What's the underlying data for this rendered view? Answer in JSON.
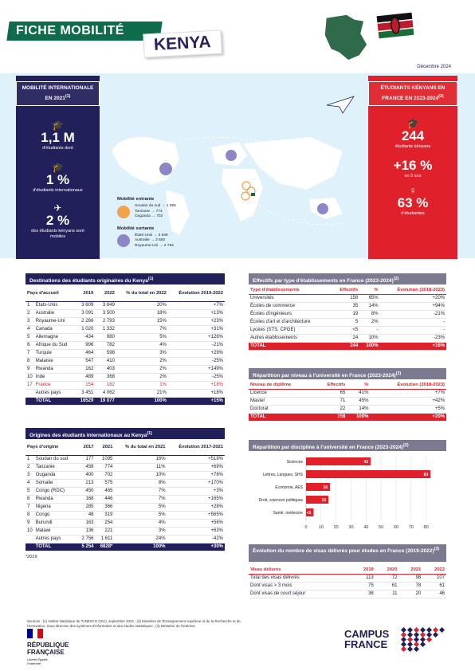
{
  "header": {
    "title": "FICHE MOBILITÉ",
    "country": "KENYA",
    "date": "Décembre 2024"
  },
  "left": {
    "title": "MOBILITÉ INTERNATIONALE EN 2021",
    "sup": "(1)",
    "stat1": "1,1 M",
    "stat1_label": "d'étudiants dont",
    "stat2": "1 %",
    "stat2_label": "d'étudiants internationaux",
    "stat3": "2 %",
    "stat3_label": "des étudiants kényans sont mobiles"
  },
  "right": {
    "title": "ÉTUDIANTS KÉNYANS EN FRANCE EN 2023-2024",
    "sup": "(2)",
    "stat1": "244",
    "stat1_label": "étudiants kényans",
    "stat2": "+16 %",
    "stat2_label": "en 5 ans",
    "stat3": "63 %",
    "stat3_label": "d'étudiantes"
  },
  "map": {
    "in_title": "Mobilité entrante",
    "in_lines": [
      "Soudan du sud → 1 095",
      "Tanzanie → 774",
      "Ouganda → 702"
    ],
    "out_title": "Mobilité sortante",
    "out_lines": [
      "États-Unis → 3 849",
      "Australie → 3 500",
      "Royaume-Uni → 2 793"
    ]
  },
  "dest": {
    "title": "Destinations des étudiants originaires du Kenya",
    "sup": "(1)",
    "headers": [
      "Pays d'accueil",
      "2019",
      "2022",
      "% du total en 2022",
      "Évolution 2019-2022"
    ],
    "rows": [
      [
        "1",
        "États-Unis",
        "3 609",
        "3 849",
        "20%",
        "+7%"
      ],
      [
        "2",
        "Australie",
        "3 091",
        "3 500",
        "18%",
        "+13%"
      ],
      [
        "3",
        "Royaume-Uni",
        "2 266",
        "2 793",
        "15%",
        "+23%"
      ],
      [
        "4",
        "Canada",
        "1 020",
        "1 332",
        "7%",
        "+31%"
      ],
      [
        "5",
        "Allemagne",
        "434",
        "980",
        "5%",
        "+126%"
      ],
      [
        "6",
        "Afrique du Sud",
        "996",
        "782",
        "4%",
        "-21%"
      ],
      [
        "7",
        "Turquie",
        "464",
        "598",
        "3%",
        "+29%"
      ],
      [
        "8",
        "Malaisie",
        "547",
        "410",
        "2%",
        "-25%"
      ],
      [
        "9",
        "Rwanda",
        "162",
        "403",
        "2%",
        "+149%"
      ],
      [
        "10",
        "Inde",
        "489",
        "368",
        "2%",
        "-25%"
      ],
      [
        "17",
        "France",
        "154",
        "182",
        "1%",
        "+18%"
      ],
      [
        "",
        "Autres pays",
        "3 451",
        "4 062",
        "21%",
        "+18%"
      ]
    ],
    "total": [
      "",
      "TOTAL",
      "16529",
      "19 077",
      "100%",
      "+15%"
    ]
  },
  "orig": {
    "title": "Origines des étudiants internationaux au Kenya",
    "sup": "(1)",
    "headers": [
      "Pays d'origine",
      "2017",
      "2021",
      "% du total en 2021",
      "Évolution 2017-2021"
    ],
    "rows": [
      [
        "1",
        "Soudan du sud",
        "177",
        "1095",
        "16%",
        "+519%"
      ],
      [
        "2",
        "Tanzanie",
        "458",
        "774",
        "11%",
        "+69%"
      ],
      [
        "3",
        "Ouganda",
        "400",
        "702",
        "10%",
        "+76%"
      ],
      [
        "4",
        "Somalie",
        "213",
        "575",
        "8%",
        "+170%"
      ],
      [
        "5",
        "Congo (RDC)",
        "450",
        "465",
        "7%",
        "+3%"
      ],
      [
        "6",
        "Rwanda",
        "168",
        "446",
        "7%",
        "+165%"
      ],
      [
        "7",
        "Nigeria",
        "285",
        "366",
        "5%",
        "+28%"
      ],
      [
        "8",
        "Congo",
        "48",
        "319",
        "5%",
        "+565%"
      ],
      [
        "9",
        "Burundi",
        "163",
        "254",
        "4%",
        "+56%"
      ],
      [
        "10",
        "Malawi",
        "136",
        "221",
        "3%",
        "+63%"
      ],
      [
        "",
        "Autres pays",
        "2 756",
        "1 611",
        "24%",
        "-42%"
      ]
    ],
    "total": [
      "",
      "TOTAL",
      "5 254",
      "6828*",
      "100%",
      "+30%"
    ],
    "note": "*2019"
  },
  "etab": {
    "title": "Effectifs par type d'établissements en France (2023-2024)",
    "sup": "(2)",
    "headers": [
      "Type d'établissements",
      "Effectifs",
      "%",
      "Évolution (2018-2023)"
    ],
    "rows": [
      [
        "Universités",
        "158",
        "65%",
        "+20%"
      ],
      [
        "Écoles de commerce",
        "35",
        "14%",
        "+94%"
      ],
      [
        "Écoles d'ingénieurs",
        "19",
        "8%",
        "-21%"
      ],
      [
        "Écoles d'art et d'architecture",
        "5",
        "2%",
        "-"
      ],
      [
        "Lycées (STS, CPGE)",
        "<5",
        "-",
        "-"
      ],
      [
        "Autres établissements",
        "24",
        "10%",
        "-23%"
      ]
    ],
    "total": [
      "TOTAL",
      "244",
      "100%",
      "+16%"
    ]
  },
  "niveau": {
    "title": "Répartition par niveau à l'université en France (2023-2024)",
    "sup": "(2)",
    "headers": [
      "Niveau de diplôme",
      "Effectifs",
      "%",
      "Évolution (2018-2023)"
    ],
    "rows": [
      [
        "Licence",
        "65",
        "41%",
        "+7%"
      ],
      [
        "Master",
        "71",
        "45%",
        "+42%"
      ],
      [
        "Doctorat",
        "22",
        "14%",
        "+5%"
      ]
    ],
    "total": [
      "TOTAL",
      "158",
      "100%",
      "+20%"
    ]
  },
  "discipline": {
    "title": "Répartition par discipline à l'université en France (2023-2024)",
    "sup": "(2)"
  },
  "chart_data": {
    "type": "bar",
    "orientation": "horizontal",
    "categories": [
      "Sciences",
      "Lettres, Langues, SHS",
      "Économie, AES",
      "Droit, sciences politiques",
      "Santé, médecine"
    ],
    "values": [
      43,
      83,
      16,
      15,
      5
    ],
    "value_labels": [
      "43",
      "83",
      "16",
      "15",
      "<5"
    ],
    "ticks": [
      "0",
      "10",
      "20",
      "30",
      "40",
      "50",
      "60",
      "70",
      "80"
    ],
    "xlim": [
      0,
      85
    ],
    "color": "#e0202a"
  },
  "visas": {
    "title": "Évolution du nombre de visas délivrés pour études en France (2019-2022)",
    "sup": "(3)",
    "headers": [
      "Visas délivrés",
      "2019",
      "2020",
      "2021",
      "2022"
    ],
    "rows": [
      [
        "Total des visas délivrés",
        "113",
        "72",
        "98",
        "107"
      ],
      [
        "Dont visas > 3 mois",
        "75",
        "61",
        "78",
        "61"
      ],
      [
        "Dont visas de court séjour",
        "38",
        "11",
        "20",
        "46"
      ]
    ]
  },
  "sources": "Sources : (1) Institut statistique de l'UNESCO (ISU), septembre 2024 ; (2) Ministère de l'Enseignement supérieur et de la Recherche et de l'Innovation, Sous-direction des systèmes d'information et des études statistiques ; (3) Ministère de l'Intérieur",
  "footer": {
    "rf1": "RÉPUBLIQUE",
    "rf2": "FRANÇAISE",
    "motto": "Liberté Égalité Fraternité",
    "campus1": "CAMPUS",
    "campus2": "FRANCE"
  },
  "colors": {
    "navy": "#22205a",
    "red": "#e0202a",
    "green": "#0e6b4c",
    "light_blue": "#dff1fb"
  }
}
